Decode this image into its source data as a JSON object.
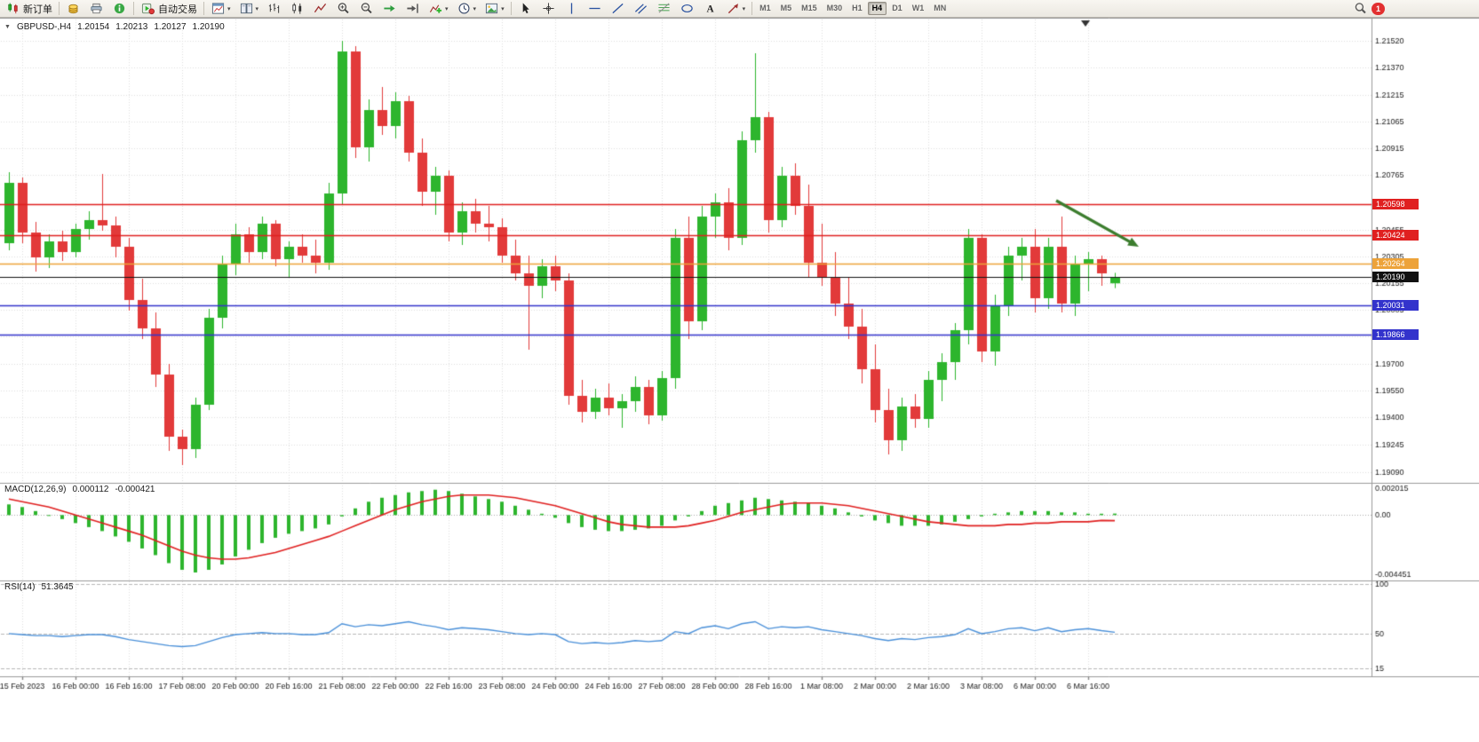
{
  "toolbar": {
    "new_order": {
      "label": "新订单",
      "icon": "new-order-icon"
    },
    "auto_trading": {
      "label": "自动交易",
      "icon": "autotrade-icon"
    },
    "left_buttons": [
      {
        "name": "alerts-button",
        "icon": "coin-icon"
      },
      {
        "name": "print-button",
        "icon": "printer-icon"
      },
      {
        "name": "info-button",
        "icon": "info-icon"
      }
    ],
    "chart_buttons": [
      {
        "name": "new-chart-button",
        "icon": "new-chart-icon",
        "dropdown": true
      },
      {
        "name": "profiles-button",
        "icon": "profiles-icon",
        "dropdown": true
      },
      {
        "name": "bar-chart-button",
        "icon": "bar-chart-icon"
      },
      {
        "name": "candlestick-chart-button",
        "icon": "candlestick-icon"
      },
      {
        "name": "line-chart-button",
        "icon": "line-chart-icon"
      },
      {
        "name": "zoom-in-button",
        "icon": "zoom-in-icon"
      },
      {
        "name": "zoom-out-button",
        "icon": "zoom-out-icon"
      },
      {
        "name": "auto-scroll-button",
        "icon": "auto-scroll-icon"
      },
      {
        "name": "chart-shift-button",
        "icon": "chart-shift-icon"
      },
      {
        "name": "indicators-button",
        "icon": "indicators-icon",
        "dropdown": true
      },
      {
        "name": "periods-button",
        "icon": "periods-icon",
        "dropdown": true
      },
      {
        "name": "templates-button",
        "icon": "templates-icon",
        "dropdown": true
      }
    ],
    "tool_buttons": [
      {
        "name": "cursor-button",
        "icon": "cursor-icon"
      },
      {
        "name": "crosshair-button",
        "icon": "crosshair-icon"
      },
      {
        "name": "vertical-line-button",
        "icon": "vertical-line-icon"
      },
      {
        "name": "horizontal-line-button",
        "icon": "horizontal-line-icon"
      },
      {
        "name": "trendline-button",
        "icon": "trendline-icon"
      },
      {
        "name": "channel-button",
        "icon": "channel-icon"
      },
      {
        "name": "fibonacci-button",
        "icon": "fibonacci-icon"
      },
      {
        "name": "shapes-button",
        "icon": "shapes-icon"
      },
      {
        "name": "text-button",
        "icon": "text-icon"
      },
      {
        "name": "arrows-button",
        "icon": "arrows-icon",
        "dropdown": true
      }
    ],
    "timeframes": [
      "M1",
      "M5",
      "M15",
      "M30",
      "H1",
      "H4",
      "D1",
      "W1",
      "MN"
    ],
    "active_timeframe": "H4",
    "right": {
      "search": {
        "name": "search-button",
        "icon": "search-icon"
      },
      "notification_count": "1"
    }
  },
  "chart_header": {
    "symbol_period": "GBPUSD-,H4",
    "open": "1.20154",
    "high": "1.20213",
    "low": "1.20127",
    "close": "1.20190"
  },
  "macd_header": {
    "label": "MACD(12,26,9)",
    "macd_value": "0.000112",
    "signal_value": "-0.000421"
  },
  "rsi_header": {
    "label": "RSI(14)",
    "value": "51.3645"
  },
  "chart_data": {
    "type": "candlestick",
    "symbol": "GBPUSD-",
    "period": "H4",
    "ylim": [
      1.1906,
      1.2162
    ],
    "price_ticks": [
      "1.21520",
      "1.21370",
      "1.21215",
      "1.21065",
      "1.20915",
      "1.20765",
      "1.20455",
      "1.20305",
      "1.20155",
      "1.20005",
      "1.19855",
      "1.19700",
      "1.19550",
      "1.19400",
      "1.19245",
      "1.19090"
    ],
    "time_labels": [
      "15 Feb 2023",
      "16 Feb 00:00",
      "16 Feb 16:00",
      "17 Feb 08:00",
      "20 Feb 00:00",
      "20 Feb 16:00",
      "21 Feb 08:00",
      "22 Feb 00:00",
      "22 Feb 16:00",
      "23 Feb 08:00",
      "24 Feb 00:00",
      "24 Feb 16:00",
      "27 Feb 08:00",
      "28 Feb 00:00",
      "28 Feb 16:00",
      "1 Mar 08:00",
      "2 Mar 00:00",
      "2 Mar 16:00",
      "3 Mar 08:00",
      "6 Mar 00:00",
      "6 Mar 16:00"
    ],
    "colors": {
      "up": "#2db52d",
      "down": "#e23a3a",
      "grid": "#dcdcdc",
      "border": "#9a9a9a",
      "macd_histogram": "#2db52d",
      "macd_signal": "#e02020",
      "rsi_line": "#4a90d9",
      "arrow": "#3c7d2e"
    },
    "hlines": [
      {
        "value": 1.20598,
        "label": "1.20598",
        "color": "#e02020",
        "name": "resistance-line-1"
      },
      {
        "value": 1.20424,
        "label": "1.20424",
        "color": "#e02020",
        "name": "resistance-line-2"
      },
      {
        "value": 1.20264,
        "label": "1.20264",
        "color": "#eda33a",
        "name": "pivot-line"
      },
      {
        "value": 1.2019,
        "label": "1.20190",
        "color": "#111111",
        "name": "current-price-line",
        "current": true
      },
      {
        "value": 1.20031,
        "label": "1.20031",
        "color": "#3333cc",
        "name": "support-line-1"
      },
      {
        "value": 1.19866,
        "label": "1.19866",
        "color": "#3333cc",
        "name": "support-line-2"
      }
    ],
    "arrow": {
      "from_index": 78.6,
      "from_price": 1.2062,
      "to_index": 84.8,
      "to_price": 1.2036
    },
    "candles": [
      [
        1.2038,
        1.2078,
        1.2034,
        1.2072
      ],
      [
        1.2072,
        1.2075,
        1.2038,
        1.2044
      ],
      [
        1.2044,
        1.205,
        1.2022,
        1.203
      ],
      [
        1.203,
        1.2043,
        1.2024,
        1.2039
      ],
      [
        1.2039,
        1.2045,
        1.2028,
        1.2033
      ],
      [
        1.2033,
        1.2049,
        1.203,
        1.2046
      ],
      [
        1.2046,
        1.2056,
        1.204,
        1.2051
      ],
      [
        1.2051,
        1.2077,
        1.2045,
        1.2048
      ],
      [
        1.2048,
        1.2053,
        1.203,
        1.2036
      ],
      [
        1.2036,
        1.2041,
        1.2,
        1.2006
      ],
      [
        1.2006,
        1.2018,
        1.1984,
        1.199
      ],
      [
        1.199,
        1.1999,
        1.1957,
        1.1964
      ],
      [
        1.1964,
        1.197,
        1.1921,
        1.1929
      ],
      [
        1.1929,
        1.1933,
        1.1913,
        1.1922
      ],
      [
        1.1922,
        1.1951,
        1.1917,
        1.1947
      ],
      [
        1.1947,
        1.2001,
        1.1944,
        1.1996
      ],
      [
        1.1996,
        1.2031,
        1.199,
        1.2026
      ],
      [
        1.2026,
        1.2049,
        1.202,
        1.2043
      ],
      [
        1.2043,
        1.2047,
        1.2027,
        1.2033
      ],
      [
        1.2033,
        1.2053,
        1.2029,
        1.2049
      ],
      [
        1.2049,
        1.2051,
        1.2025,
        1.2029
      ],
      [
        1.2029,
        1.2039,
        1.2019,
        1.2036
      ],
      [
        1.2036,
        1.2043,
        1.2027,
        1.2031
      ],
      [
        1.2031,
        1.204,
        1.2021,
        1.2027
      ],
      [
        1.2027,
        1.2072,
        1.2023,
        1.2066
      ],
      [
        1.2066,
        1.2152,
        1.206,
        1.2146
      ],
      [
        1.2146,
        1.2149,
        1.2086,
        1.2092
      ],
      [
        1.2092,
        1.2119,
        1.2084,
        1.2113
      ],
      [
        1.2113,
        1.2126,
        1.2099,
        1.2104
      ],
      [
        1.2104,
        1.2123,
        1.2097,
        1.2118
      ],
      [
        1.2118,
        1.2121,
        1.2084,
        1.2089
      ],
      [
        1.2089,
        1.2097,
        1.2059,
        1.2067
      ],
      [
        1.2067,
        1.2081,
        1.2054,
        1.2076
      ],
      [
        1.2076,
        1.2079,
        1.2039,
        1.2044
      ],
      [
        1.2044,
        1.2061,
        1.2037,
        1.2056
      ],
      [
        1.2056,
        1.2063,
        1.2044,
        1.2049
      ],
      [
        1.2049,
        1.2059,
        1.2039,
        1.2047
      ],
      [
        1.2047,
        1.2052,
        1.2027,
        1.2031
      ],
      [
        1.2031,
        1.204,
        1.2017,
        1.2021
      ],
      [
        1.2021,
        1.2031,
        1.1978,
        1.2014
      ],
      [
        1.2014,
        1.2029,
        1.2007,
        1.2025
      ],
      [
        1.2025,
        1.2031,
        1.2011,
        1.2017
      ],
      [
        1.2017,
        1.2021,
        1.1947,
        1.1952
      ],
      [
        1.1952,
        1.1961,
        1.1937,
        1.1943
      ],
      [
        1.1943,
        1.1956,
        1.1939,
        1.1951
      ],
      [
        1.1951,
        1.1959,
        1.1941,
        1.1945
      ],
      [
        1.1945,
        1.1953,
        1.1934,
        1.1949
      ],
      [
        1.1949,
        1.1963,
        1.1943,
        1.1957
      ],
      [
        1.1957,
        1.1961,
        1.1936,
        1.1941
      ],
      [
        1.1941,
        1.1966,
        1.1938,
        1.1962
      ],
      [
        1.1962,
        1.2046,
        1.1956,
        1.2041
      ],
      [
        1.2041,
        1.2053,
        1.1984,
        1.1994
      ],
      [
        1.1994,
        1.2059,
        1.1989,
        1.2053
      ],
      [
        1.2053,
        1.2066,
        1.2041,
        1.2061
      ],
      [
        1.2061,
        1.2069,
        1.2034,
        1.2041
      ],
      [
        1.2041,
        1.2101,
        1.2037,
        1.2096
      ],
      [
        1.2096,
        1.2145,
        1.2089,
        1.2109
      ],
      [
        1.2109,
        1.2112,
        1.2044,
        1.2051
      ],
      [
        1.2051,
        1.2081,
        1.2047,
        1.2076
      ],
      [
        1.2076,
        1.2083,
        1.2054,
        1.2059
      ],
      [
        1.2059,
        1.2071,
        1.2019,
        1.2027
      ],
      [
        1.2027,
        1.2049,
        1.2014,
        1.2019
      ],
      [
        1.2019,
        1.2033,
        1.1997,
        1.2004
      ],
      [
        1.2004,
        1.2019,
        1.1984,
        1.1991
      ],
      [
        1.1991,
        1.2001,
        1.1959,
        1.1967
      ],
      [
        1.1967,
        1.1981,
        1.1937,
        1.1944
      ],
      [
        1.1944,
        1.1956,
        1.1919,
        1.1927
      ],
      [
        1.1927,
        1.1951,
        1.1921,
        1.1946
      ],
      [
        1.1946,
        1.1953,
        1.1934,
        1.1939
      ],
      [
        1.1939,
        1.1966,
        1.1934,
        1.1961
      ],
      [
        1.1961,
        1.1976,
        1.1949,
        1.1971
      ],
      [
        1.1971,
        1.1993,
        1.1961,
        1.1989
      ],
      [
        1.1989,
        1.2046,
        1.1981,
        1.2041
      ],
      [
        1.2041,
        1.2043,
        1.1971,
        1.1977
      ],
      [
        1.1977,
        1.2009,
        1.1969,
        1.2003
      ],
      [
        1.2003,
        1.2036,
        1.1997,
        1.2031
      ],
      [
        1.2031,
        1.2041,
        1.2017,
        1.2036
      ],
      [
        1.2036,
        1.2046,
        1.1999,
        1.2007
      ],
      [
        1.2007,
        1.2041,
        1.2001,
        1.2036
      ],
      [
        1.2036,
        1.2053,
        1.1999,
        1.2004
      ],
      [
        1.2004,
        1.2031,
        1.1997,
        1.2026
      ],
      [
        1.2026,
        1.2033,
        1.2011,
        1.2029
      ],
      [
        1.2029,
        1.2031,
        1.2014,
        1.2021
      ],
      [
        1.20154,
        1.20213,
        1.20127,
        1.2019
      ]
    ],
    "macd": {
      "ylim": [
        -0.0045,
        0.00215
      ],
      "axis_labels": [
        "0.002015",
        "0.00",
        "-0.004451"
      ],
      "histogram": [
        0.0008,
        0.0006,
        0.0003,
        0.0,
        -0.0003,
        -0.0006,
        -0.0009,
        -0.0012,
        -0.0016,
        -0.002,
        -0.0025,
        -0.003,
        -0.0036,
        -0.0041,
        -0.0043,
        -0.0041,
        -0.0037,
        -0.0031,
        -0.0026,
        -0.0021,
        -0.0017,
        -0.0014,
        -0.0012,
        -0.001,
        -0.0007,
        -0.0001,
        0.0005,
        0.001,
        0.0013,
        0.0015,
        0.0017,
        0.0018,
        0.0019,
        0.0018,
        0.0016,
        0.0014,
        0.0012,
        0.001,
        0.0007,
        0.0004,
        0.0001,
        -0.0002,
        -0.0006,
        -0.0009,
        -0.0011,
        -0.0012,
        -0.0012,
        -0.0011,
        -0.001,
        -0.0008,
        -0.0004,
        -0.0001,
        0.0003,
        0.0007,
        0.0009,
        0.0011,
        0.0013,
        0.0012,
        0.0011,
        0.001,
        0.0009,
        0.0007,
        0.0005,
        0.0002,
        -0.0001,
        -0.0004,
        -0.0006,
        -0.0008,
        -0.0008,
        -0.0008,
        -0.0007,
        -0.0005,
        -0.0003,
        -0.0001,
        0.0001,
        0.0002,
        0.0003,
        0.0003,
        0.0003,
        0.0002,
        0.0002,
        0.0001,
        0.0001,
        0.000112
      ],
      "signal": [
        0.0012,
        0.001,
        0.0008,
        0.0006,
        0.0003,
        0.0,
        -0.0003,
        -0.0006,
        -0.0009,
        -0.0012,
        -0.0015,
        -0.0019,
        -0.0023,
        -0.0027,
        -0.003,
        -0.0032,
        -0.0033,
        -0.0033,
        -0.0032,
        -0.003,
        -0.0028,
        -0.0025,
        -0.0022,
        -0.0019,
        -0.0016,
        -0.0012,
        -0.0008,
        -0.0004,
        0.0,
        0.0004,
        0.0007,
        0.001,
        0.0012,
        0.0014,
        0.0015,
        0.0015,
        0.0015,
        0.0014,
        0.0013,
        0.0011,
        0.0009,
        0.0007,
        0.0004,
        0.0001,
        -0.0002,
        -0.0005,
        -0.0007,
        -0.0008,
        -0.0009,
        -0.0009,
        -0.0009,
        -0.0008,
        -0.0006,
        -0.0004,
        -0.0001,
        0.0002,
        0.0004,
        0.0006,
        0.0008,
        0.0009,
        0.0009,
        0.0009,
        0.0008,
        0.0007,
        0.0005,
        0.0003,
        0.0001,
        -0.0001,
        -0.0003,
        -0.0005,
        -0.0006,
        -0.0007,
        -0.0008,
        -0.0008,
        -0.0008,
        -0.0007,
        -0.0007,
        -0.0006,
        -0.0006,
        -0.0005,
        -0.0005,
        -0.0005,
        -0.0004,
        -0.000421
      ]
    },
    "rsi": {
      "ylim": [
        7,
        100
      ],
      "axis_labels": [
        "100",
        "50",
        "15"
      ],
      "levels": [
        100,
        50,
        15
      ],
      "values": [
        50,
        49,
        48,
        48,
        47,
        48,
        49,
        49,
        47,
        44,
        42,
        40,
        38,
        37,
        38,
        42,
        46,
        49,
        50,
        51,
        50,
        50,
        49,
        49,
        51,
        60,
        57,
        59,
        58,
        60,
        62,
        59,
        57,
        54,
        56,
        55,
        54,
        52,
        50,
        49,
        50,
        49,
        42,
        40,
        41,
        40,
        41,
        43,
        42,
        43,
        52,
        50,
        56,
        58,
        55,
        60,
        62,
        55,
        57,
        56,
        57,
        54,
        52,
        50,
        48,
        45,
        43,
        45,
        44,
        46,
        47,
        49,
        55,
        50,
        52,
        55,
        56,
        53,
        56,
        52,
        54,
        55,
        53,
        51.3645
      ]
    }
  }
}
